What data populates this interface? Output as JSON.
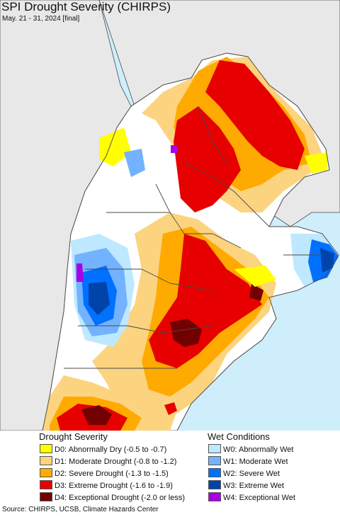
{
  "title": "SPI Drought Severity (CHIRPS)",
  "subtitle": "May. 21 - 31, 2024 [final]",
  "colors": {
    "ocean": "#cfeefb",
    "land_outside": "#e8e8e8",
    "no_data_land": "#ffffff",
    "border": "#4a4a4a"
  },
  "legend": {
    "drought": {
      "heading": "Drought Severity",
      "items": [
        {
          "label": "D0: Abnormally Dry (-0.5 to -0.7)",
          "color": "#ffff00"
        },
        {
          "label": "D1: Moderate Drought (-0.8 to -1.2)",
          "color": "#fcd37f"
        },
        {
          "label": "D2: Severe Drought (-1.3 to -1.5)",
          "color": "#ffaa00"
        },
        {
          "label": "D3: Extreme Drought (-1.6 to -1.9)",
          "color": "#e60000"
        },
        {
          "label": "D4: Exceptional Drought (-2.0 or less)",
          "color": "#730000"
        }
      ]
    },
    "wet": {
      "heading": "Wet Conditions",
      "items": [
        {
          "label": "W0: Abnormally Wet",
          "color": "#bee8ff"
        },
        {
          "label": "W1: Moderate Wet",
          "color": "#73b2ff"
        },
        {
          "label": "W2: Severe Wet",
          "color": "#0070ff"
        },
        {
          "label": "W3: Extreme Wet",
          "color": "#0044aa"
        },
        {
          "label": "W4: Exceptional Wet",
          "color": "#aa00e6"
        }
      ]
    }
  },
  "source": "Source: CHIRPS, UCSB, Climate Hazards Center"
}
